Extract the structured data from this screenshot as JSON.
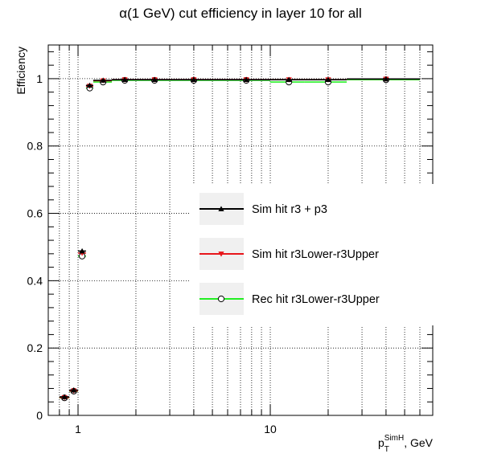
{
  "chart_data": {
    "type": "scatter",
    "title": "α(1 GeV) cut efficiency in layer 10 for all",
    "xlabel": {
      "base": "p",
      "sub": "T",
      "sup": "SimH",
      "suffix": ", GeV"
    },
    "ylabel": "Efficiency",
    "x_scale": "log",
    "xlim": [
      0.7,
      70
    ],
    "ylim": [
      0,
      1.1
    ],
    "x_tick_labels": [
      "1",
      "10"
    ],
    "y_tick_labels": [
      "0",
      "0.2",
      "0.4",
      "0.6",
      "0.8",
      "1"
    ],
    "grid": true,
    "legend_position": "right",
    "series": [
      {
        "name": "Sim hit r3 + p3",
        "color": "#000000",
        "marker": "triangle-up",
        "x": [
          0.85,
          0.95,
          1.05,
          1.15,
          1.35,
          1.75,
          2.5,
          4,
          7.5,
          12.5,
          20,
          40
        ],
        "xerr": [
          [
            0.8,
            0.9
          ],
          [
            0.9,
            1.0
          ],
          [
            1.0,
            1.1
          ],
          [
            1.1,
            1.2
          ],
          [
            1.2,
            1.5
          ],
          [
            1.5,
            2.0
          ],
          [
            2.0,
            3.0
          ],
          [
            3.0,
            5.0
          ],
          [
            5.0,
            10.0
          ],
          [
            10.0,
            15.0
          ],
          [
            15.0,
            25.0
          ],
          [
            25.0,
            60.0
          ]
        ],
        "y": [
          0.055,
          0.075,
          0.488,
          0.98,
          0.995,
          0.997,
          0.997,
          0.997,
          0.997,
          0.997,
          0.997,
          0.999
        ]
      },
      {
        "name": "Sim hit r3Lower-r3Upper",
        "color": "#e8161b",
        "marker": "triangle-down",
        "x": [
          0.85,
          0.95,
          1.05,
          1.15,
          1.35,
          1.75,
          2.5,
          4,
          7.5,
          12.5,
          20,
          40
        ],
        "xerr": [
          [
            0.8,
            0.9
          ],
          [
            0.9,
            1.0
          ],
          [
            1.0,
            1.1
          ],
          [
            1.1,
            1.2
          ],
          [
            1.2,
            1.5
          ],
          [
            1.5,
            2.0
          ],
          [
            2.0,
            3.0
          ],
          [
            3.0,
            5.0
          ],
          [
            5.0,
            10.0
          ],
          [
            10.0,
            15.0
          ],
          [
            15.0,
            25.0
          ],
          [
            25.0,
            60.0
          ]
        ],
        "y": [
          0.053,
          0.073,
          0.482,
          0.978,
          0.994,
          0.997,
          0.997,
          0.997,
          0.997,
          0.997,
          0.997,
          0.999
        ]
      },
      {
        "name": "Rec hit r3Lower-r3Upper",
        "color": "#22ee22",
        "marker": "circle-open",
        "x": [
          0.85,
          0.95,
          1.05,
          1.15,
          1.35,
          1.75,
          2.5,
          4,
          7.5,
          12.5,
          20,
          40
        ],
        "xerr": [
          [
            0.8,
            0.9
          ],
          [
            0.9,
            1.0
          ],
          [
            1.0,
            1.1
          ],
          [
            1.1,
            1.2
          ],
          [
            1.2,
            1.5
          ],
          [
            1.5,
            2.0
          ],
          [
            2.0,
            3.0
          ],
          [
            3.0,
            5.0
          ],
          [
            5.0,
            10.0
          ],
          [
            10.0,
            15.0
          ],
          [
            15.0,
            25.0
          ],
          [
            25.0,
            60.0
          ]
        ],
        "y": [
          0.052,
          0.072,
          0.473,
          0.972,
          0.99,
          0.995,
          0.995,
          0.995,
          0.995,
          0.99,
          0.99,
          0.997
        ]
      }
    ]
  }
}
